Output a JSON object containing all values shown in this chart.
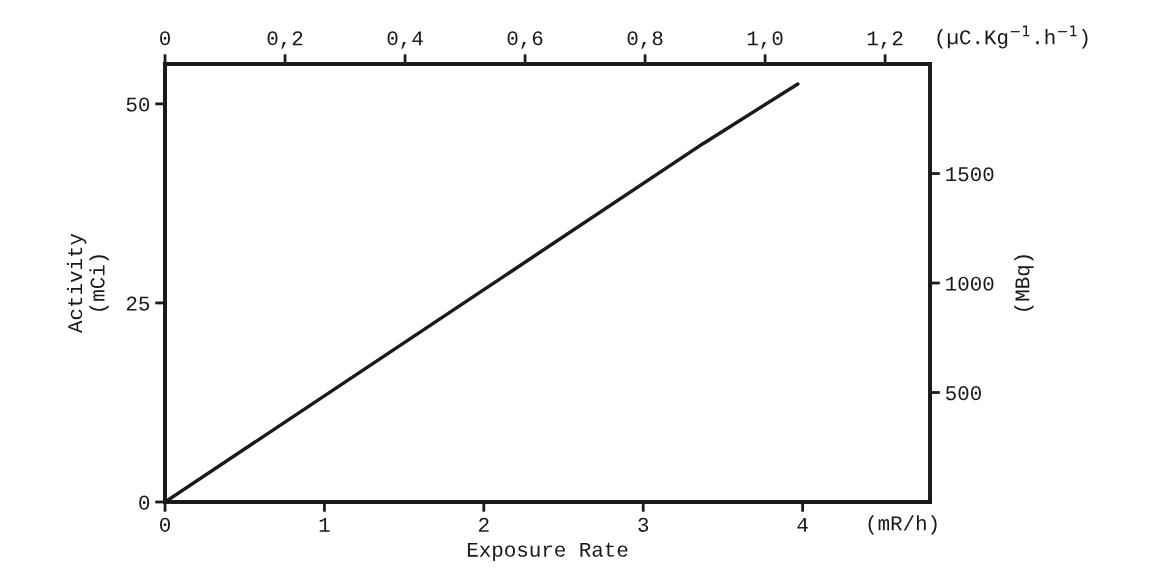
{
  "chart_data": {
    "type": "line",
    "xlabel": "Exposure Rate",
    "ylabel": "Activity\n(mCi)",
    "y2label": "(MBq)",
    "x2label": "(µC.Kg$^{−1}$.h$^{−1}$)",
    "series": [
      {
        "x": [
          0,
          3.375,
          3.97
        ],
        "values": [
          0,
          45,
          52.5
        ],
        "color": "#1a1a1a"
      }
    ],
    "xlim": [
      0,
      4.8
    ],
    "xticks": [
      0,
      1,
      2,
      3,
      4
    ],
    "ylim": [
      0,
      55
    ],
    "yticks": [
      0,
      25,
      50
    ],
    "y2lim": [
      0,
      2000
    ],
    "y2ticks": [
      500,
      1000,
      1500
    ],
    "x2lim": [
      0,
      1.275
    ],
    "x2ticks": [
      0,
      {
        "value": 0.2,
        "label": "0,2"
      },
      {
        "value": 0.4,
        "label": "0,4"
      },
      {
        "value": 0.6,
        "label": "0,6"
      },
      {
        "value": 0.8,
        "label": "0,8"
      },
      {
        "value": 1.0,
        "label": "1,0"
      },
      {
        "value": 1.2,
        "label": "1,2"
      }
    ],
    "annotations": [
      "(mR/h)"
    ],
    "grid": false,
    "legend": false,
    "marker": "none",
    "line_style": "solid"
  }
}
